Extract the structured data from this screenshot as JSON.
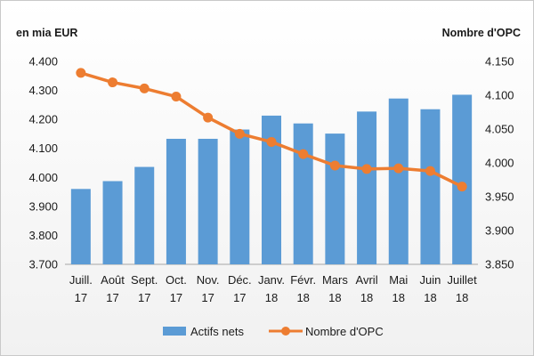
{
  "chart_data": {
    "type": "bar",
    "categories": [
      [
        "Juill.",
        "17"
      ],
      [
        "Août",
        "17"
      ],
      [
        "Sept.",
        "17"
      ],
      [
        "Oct.",
        "17"
      ],
      [
        "Nov.",
        "17"
      ],
      [
        "Déc.",
        "17"
      ],
      [
        "Janv.",
        "18"
      ],
      [
        "Févr.",
        "18"
      ],
      [
        "Mars",
        "18"
      ],
      [
        "Avril",
        "18"
      ],
      [
        "Mai",
        "18"
      ],
      [
        "Juin",
        "18"
      ],
      [
        "Juillet",
        "18"
      ]
    ],
    "series": [
      {
        "name": "Actifs nets",
        "type": "bar",
        "axis": "left",
        "color": "#5b9bd5",
        "values": [
          3960,
          3987,
          4036,
          4133,
          4133,
          4165,
          4213,
          4186,
          4151,
          4227,
          4272,
          4235,
          4285
        ]
      },
      {
        "name": "Nombre d'OPC",
        "type": "line",
        "axis": "right",
        "color": "#ed7d31",
        "values": [
          4133,
          4119,
          4110,
          4098,
          4067,
          4043,
          4031,
          4013,
          3996,
          3991,
          3992,
          3988,
          3965
        ]
      }
    ],
    "y_left": {
      "label": "en mia EUR",
      "ylim": [
        3700,
        4400
      ],
      "ticks": [
        "3.700",
        "3.800",
        "3.900",
        "4.000",
        "4.100",
        "4.200",
        "4.300",
        "4.400"
      ]
    },
    "y_right": {
      "label": "Nombre d'OPC",
      "ylim": [
        3850,
        4150
      ],
      "ticks": [
        "3.850",
        "3.900",
        "3.950",
        "4.000",
        "4.050",
        "4.100",
        "4.150"
      ]
    },
    "grid": false,
    "legend": "bottom"
  }
}
